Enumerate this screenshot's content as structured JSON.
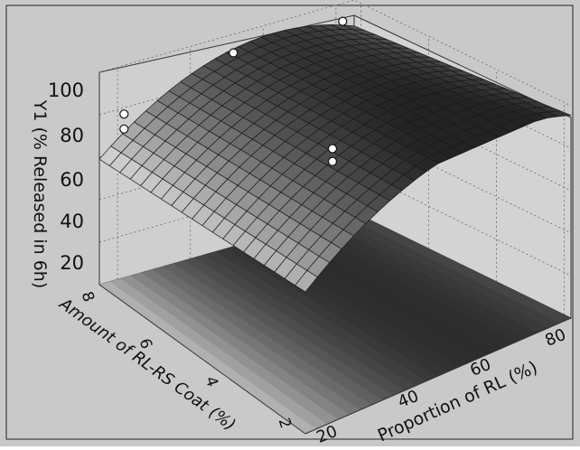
{
  "chart_data": {
    "type": "surface",
    "title": "",
    "zlabel": "Y1 (% Released in 6h)",
    "xlabel": "Proportion of RL (%)",
    "ylabel": "Amount of RL-RS Coat (%)",
    "xlim": [
      15,
      85
    ],
    "ylim": [
      1.8,
      8.2
    ],
    "zlim": [
      0,
      100
    ],
    "x_ticks": [
      "20",
      "40",
      "60",
      "80"
    ],
    "y_ticks": [
      "2",
      "4",
      "6",
      "8"
    ],
    "z_ticks": [
      "20",
      "40",
      "60",
      "80",
      "100"
    ],
    "grid": true,
    "design_points": [
      {
        "x": 20,
        "y": 8,
        "z": 80
      },
      {
        "x": 20,
        "y": 8,
        "z": 73
      },
      {
        "x": 50,
        "y": 8,
        "z": 94
      },
      {
        "x": 80,
        "y": 8,
        "z": 94
      },
      {
        "x": 50,
        "y": 5,
        "z": 77
      },
      {
        "x": 50,
        "y": 5,
        "z": 71
      }
    ]
  }
}
